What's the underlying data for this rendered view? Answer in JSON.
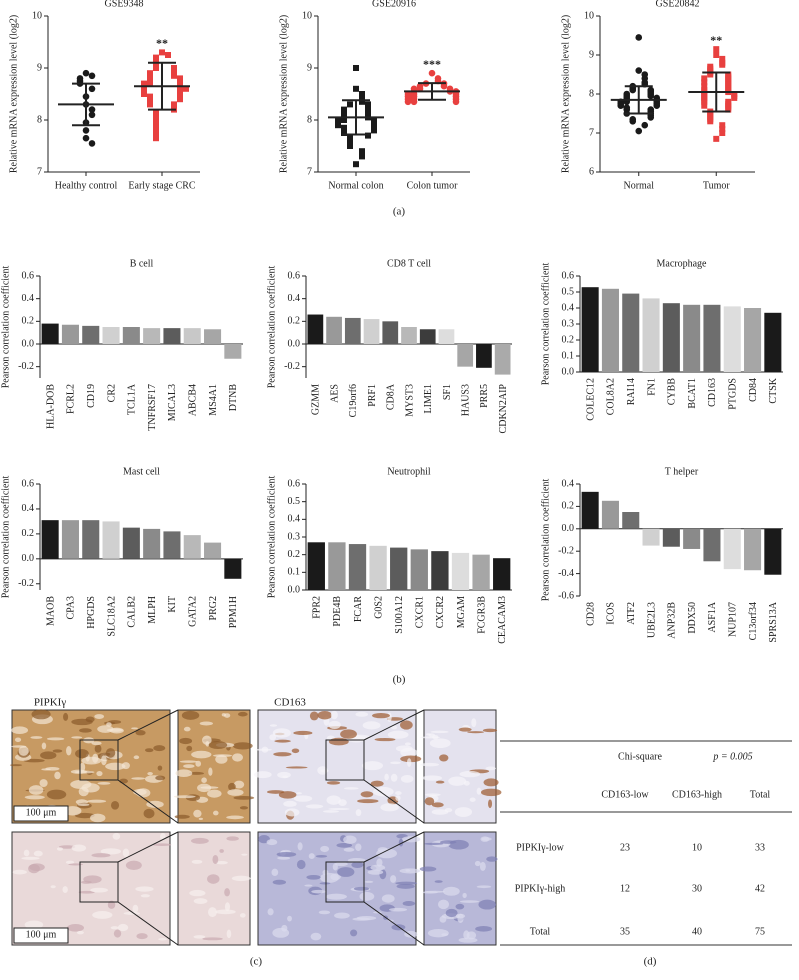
{
  "chart_data": [
    {
      "type": "dotplot",
      "title": "GSE9348",
      "ylabel": "Relative mRNA expression level (log2)",
      "ylim": [
        7,
        10
      ],
      "yticks": [
        7,
        8,
        9,
        10
      ],
      "categories": [
        "Healthy control",
        "Early stage CRC"
      ],
      "groups": [
        {
          "color": "#1a1a1a",
          "marker": "circle",
          "mean": 8.3,
          "sd": 0.4,
          "values": [
            8.9,
            8.85,
            8.8,
            8.75,
            8.7,
            8.6,
            8.45,
            8.3,
            8.2,
            8.1,
            7.95,
            7.8,
            7.65,
            7.55
          ]
        },
        {
          "color": "#e8403f",
          "marker": "square",
          "mean": 8.65,
          "sd": 0.45,
          "annotation": "**",
          "values": [
            9.3,
            9.25,
            9.2,
            9.15,
            9.1,
            9.05,
            9.0,
            9.0,
            8.95,
            8.9,
            8.9,
            8.85,
            8.85,
            8.8,
            8.8,
            8.75,
            8.75,
            8.7,
            8.7,
            8.7,
            8.65,
            8.65,
            8.6,
            8.6,
            8.6,
            8.55,
            8.55,
            8.5,
            8.5,
            8.45,
            8.45,
            8.4,
            8.4,
            8.35,
            8.3,
            8.3,
            8.25,
            8.2,
            8.15,
            8.1,
            8.05,
            8.0,
            7.95,
            7.9,
            7.85,
            7.8,
            7.75,
            7.7,
            7.65
          ]
        }
      ]
    },
    {
      "type": "dotplot",
      "title": "GSE20916",
      "ylabel": "Relative mRNA expression level (log2)",
      "ylim": [
        7,
        10
      ],
      "yticks": [
        7,
        8,
        9,
        10
      ],
      "categories": [
        "Normal colon",
        "Colon tumor"
      ],
      "groups": [
        {
          "color": "#1a1a1a",
          "marker": "square",
          "mean": 8.05,
          "sd": 0.33,
          "values": [
            9.0,
            8.6,
            8.5,
            8.4,
            8.35,
            8.3,
            8.3,
            8.25,
            8.2,
            8.2,
            8.15,
            8.1,
            8.1,
            8.05,
            8.05,
            8.0,
            8.0,
            8.0,
            7.95,
            7.95,
            7.9,
            7.9,
            7.85,
            7.85,
            7.8,
            7.8,
            7.75,
            7.7,
            7.65,
            7.6,
            7.55,
            7.5,
            7.4,
            7.3,
            7.15
          ]
        },
        {
          "color": "#e8403f",
          "marker": "circle",
          "mean": 8.55,
          "sd": 0.16,
          "annotation": "***",
          "values": [
            8.9,
            8.8,
            8.75,
            8.7,
            8.7,
            8.65,
            8.65,
            8.6,
            8.6,
            8.6,
            8.55,
            8.55,
            8.55,
            8.5,
            8.5,
            8.5,
            8.45,
            8.45,
            8.45,
            8.4,
            8.4,
            8.4,
            8.35,
            8.35,
            8.35
          ]
        }
      ]
    },
    {
      "type": "dotplot",
      "title": "GSE20842",
      "ylabel": "Relative mRNA expression level (log2)",
      "ylim": [
        6,
        10
      ],
      "yticks": [
        6,
        7,
        8,
        9,
        10
      ],
      "categories": [
        "Normal",
        "Tumor"
      ],
      "groups": [
        {
          "color": "#1a1a1a",
          "marker": "circle",
          "mean": 7.85,
          "sd": 0.35,
          "values": [
            9.45,
            8.6,
            8.5,
            8.4,
            8.3,
            8.25,
            8.2,
            8.15,
            8.1,
            8.1,
            8.05,
            8.0,
            8.0,
            7.95,
            7.95,
            7.9,
            7.9,
            7.85,
            7.85,
            7.8,
            7.8,
            7.8,
            7.75,
            7.75,
            7.7,
            7.7,
            7.65,
            7.6,
            7.6,
            7.55,
            7.5,
            7.5,
            7.45,
            7.4,
            7.35,
            7.3,
            7.2,
            7.05
          ]
        },
        {
          "color": "#e8403f",
          "marker": "square",
          "mean": 8.05,
          "sd": 0.5,
          "annotation": "**",
          "values": [
            9.15,
            9.0,
            8.9,
            8.8,
            8.75,
            8.7,
            8.65,
            8.6,
            8.55,
            8.5,
            8.5,
            8.45,
            8.4,
            8.4,
            8.35,
            8.3,
            8.3,
            8.25,
            8.2,
            8.2,
            8.15,
            8.1,
            8.1,
            8.05,
            8.05,
            8.0,
            8.0,
            7.95,
            7.95,
            7.9,
            7.9,
            7.85,
            7.8,
            7.8,
            7.75,
            7.7,
            7.7,
            7.65,
            7.6,
            7.55,
            7.5,
            7.45,
            7.4,
            7.35,
            7.3,
            7.2,
            7.1,
            7.0,
            6.85
          ]
        }
      ]
    },
    {
      "type": "bar",
      "title": "B cell",
      "ylabel": "Pearson correlation coefficient",
      "ylim": [
        -0.3,
        0.6
      ],
      "yticks": [
        -0.2,
        {
          "value": 0,
          "label": "0.0"
        },
        0.2,
        0.4,
        0.6
      ],
      "categories": [
        "HLA-DOB",
        "FCRL2",
        "CD19",
        "CR2",
        "TCL1A",
        "TNFRSF17",
        "MICAL3",
        "ABCB4",
        "MS4A1",
        "DTNB"
      ],
      "values": [
        0.18,
        0.17,
        0.16,
        0.15,
        0.15,
        0.14,
        0.14,
        0.14,
        0.13,
        -0.13
      ],
      "colors": [
        "#1a1a1a",
        "#999999",
        "#6e6e6e",
        "#d0d0d0",
        "#8a8a8a",
        "#b8b8b8",
        "#5c5c5c",
        "#c8c8c8",
        "#a6a6a6",
        "#aaaaaa"
      ]
    },
    {
      "type": "bar",
      "title": "CD8 T cell",
      "ylabel": "Pearson correlation coefficient",
      "ylim": [
        -0.3,
        0.6
      ],
      "yticks": [
        -0.2,
        {
          "value": 0,
          "label": "0.0"
        },
        0.2,
        0.4,
        0.6
      ],
      "categories": [
        "GZMM",
        "AES",
        "C19orf6",
        "PRF1",
        "CD8A",
        "MYST3",
        "LIME1",
        "SF1",
        "HAUS3",
        "PRR5",
        "CDKN2AIP"
      ],
      "values": [
        0.26,
        0.24,
        0.23,
        0.22,
        0.2,
        0.15,
        0.13,
        0.13,
        -0.2,
        -0.21,
        -0.27
      ],
      "colors": [
        "#1a1a1a",
        "#999999",
        "#6e6e6e",
        "#d0d0d0",
        "#5c5c5c",
        "#b8b8b8",
        "#3c3c3c",
        "#dddddd",
        "#a6a6a6",
        "#1a1a1a",
        "#aaaaaa"
      ]
    },
    {
      "type": "bar",
      "title": "Macrophage",
      "ylabel": "Pearson correlation coefficient",
      "ylim": [
        0,
        0.6
      ],
      "yticks": [
        {
          "value": 0,
          "label": "0.0"
        },
        0.1,
        0.2,
        0.3,
        0.4,
        0.5,
        0.6
      ],
      "categories": [
        "COLEC12",
        "COL8A2",
        "RAI14",
        "FN1",
        "CYBB",
        "BCAT1",
        "CD163",
        "PTGDS",
        "CD84",
        "CTSK"
      ],
      "values": [
        0.53,
        0.52,
        0.49,
        0.46,
        0.43,
        0.42,
        0.42,
        0.41,
        0.4,
        0.37
      ],
      "colors": [
        "#1a1a1a",
        "#999999",
        "#6e6e6e",
        "#d0d0d0",
        "#5c5c5c",
        "#8a8a8a",
        "#6e6e6e",
        "#dddddd",
        "#a6a6a6",
        "#1a1a1a"
      ]
    },
    {
      "type": "bar",
      "title": "Mast cell",
      "ylabel": "Pearson correlation coefficient",
      "ylim": [
        -0.25,
        0.6
      ],
      "yticks": [
        -0.2,
        {
          "value": 0,
          "label": "0.0"
        },
        0.2,
        0.4,
        0.6
      ],
      "categories": [
        "MAOB",
        "CPA3",
        "HPGDS",
        "SLC18A2",
        "CALB2",
        "MLPH",
        "KIT",
        "GATA2",
        "PRG2",
        "PPM1H"
      ],
      "values": [
        0.31,
        0.31,
        0.31,
        0.3,
        0.25,
        0.24,
        0.22,
        0.19,
        0.13,
        -0.16
      ],
      "colors": [
        "#1a1a1a",
        "#999999",
        "#6e6e6e",
        "#d0d0d0",
        "#5c5c5c",
        "#8a8a8a",
        "#6e6e6e",
        "#b8b8b8",
        "#a6a6a6",
        "#1a1a1a"
      ]
    },
    {
      "type": "bar",
      "title": "Neutrophil",
      "ylabel": "Pearson correlation coefficient",
      "ylim": [
        0,
        0.6
      ],
      "yticks": [
        {
          "value": 0,
          "label": "0.0"
        },
        0.1,
        0.2,
        0.3,
        0.4,
        0.5,
        0.6
      ],
      "categories": [
        "FPR2",
        "PDE4B",
        "FCAR",
        "G0S2",
        "S100A12",
        "CXCR1",
        "CXCR2",
        "MGAM",
        "FCGR3B",
        "CEACAM3"
      ],
      "values": [
        0.27,
        0.27,
        0.26,
        0.25,
        0.24,
        0.23,
        0.22,
        0.21,
        0.2,
        0.18
      ],
      "colors": [
        "#1a1a1a",
        "#999999",
        "#6e6e6e",
        "#d0d0d0",
        "#5c5c5c",
        "#8a8a8a",
        "#3c3c3c",
        "#dddddd",
        "#a6a6a6",
        "#1a1a1a"
      ]
    },
    {
      "type": "bar",
      "title": "T helper",
      "ylabel": "Pearson correlation coefficient",
      "ylim": [
        -0.6,
        0.4
      ],
      "yticks": [
        -0.6,
        -0.4,
        -0.2,
        {
          "value": 0,
          "label": "0.0"
        },
        0.2,
        0.4
      ],
      "categories": [
        "CD28",
        "ICOS",
        "ATF2",
        "UBE2L3",
        "ANP32B",
        "DDX50",
        "ASF1A",
        "NUP107",
        "C13orf34",
        "SPRS13A"
      ],
      "values": [
        0.33,
        0.25,
        0.15,
        -0.15,
        -0.16,
        -0.18,
        -0.29,
        -0.36,
        -0.37,
        -0.41
      ],
      "colors": [
        "#1a1a1a",
        "#999999",
        "#6e6e6e",
        "#d0d0d0",
        "#5c5c5c",
        "#8a8a8a",
        "#6e6e6e",
        "#dddddd",
        "#a6a6a6",
        "#1a1a1a"
      ]
    }
  ],
  "panels": [
    "(a)",
    "(b)",
    "(c)",
    "(d)"
  ],
  "ihc": {
    "stains": [
      "PIPKIγ",
      "CD163"
    ],
    "scale_bar": "100 μm"
  },
  "table": {
    "test": "Chi-square",
    "p": "p = 0.005",
    "columns": [
      "CD163-low",
      "CD163-high",
      "Total"
    ],
    "rows": [
      [
        "PIPKIγ-low",
        23,
        10,
        33
      ],
      [
        "PIPKIγ-high",
        12,
        30,
        42
      ],
      [
        "Total",
        35,
        40,
        75
      ]
    ]
  }
}
